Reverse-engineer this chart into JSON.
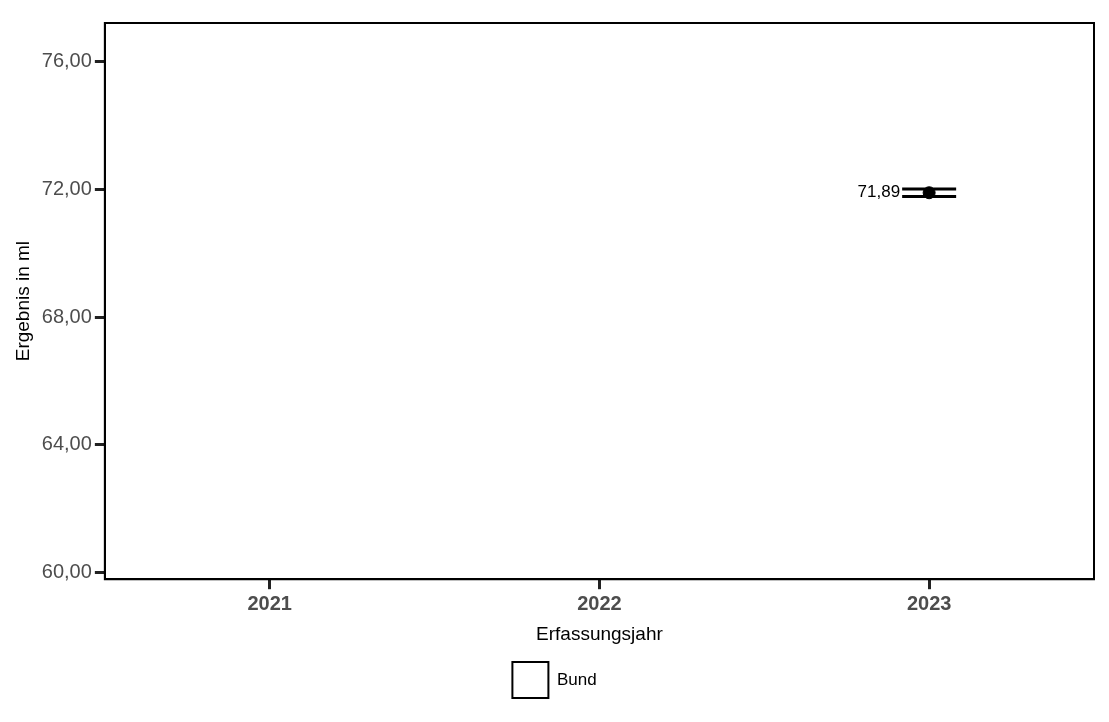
{
  "chart_data": {
    "type": "scatter",
    "xlabel": "Erfassungsjahr",
    "ylabel": "Ergebnis in ml",
    "categories": [
      "2021",
      "2022",
      "2023"
    ],
    "series": [
      {
        "name": "Bund",
        "color": "#000000",
        "values": [
          null,
          null,
          71.89
        ],
        "errors": [
          null,
          null,
          0.12
        ],
        "value_labels": [
          null,
          null,
          "71,89"
        ]
      }
    ],
    "ylim": [
      59.8,
      77.2
    ],
    "yticks": [
      {
        "value": 60,
        "label": "60,00"
      },
      {
        "value": 64,
        "label": "64,00"
      },
      {
        "value": 68,
        "label": "68,00"
      },
      {
        "value": 72,
        "label": "72,00"
      },
      {
        "value": 76,
        "label": "76,00"
      }
    ],
    "grid": false,
    "legend": "bottom",
    "marker": "circle"
  }
}
